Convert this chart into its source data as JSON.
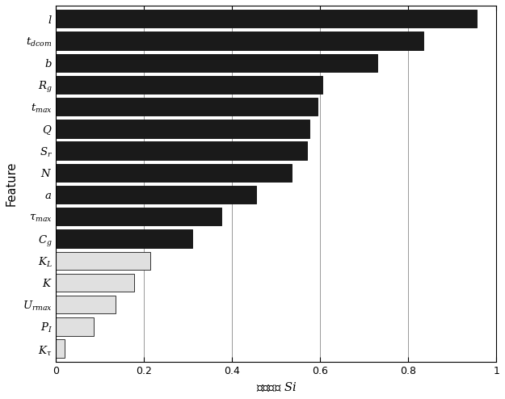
{
  "labels_display": [
    "$\\mathit{l}$",
    "$t_{dcom}$",
    "$\\mathit{b}$",
    "$R_g$",
    "$t_{max}$",
    "$\\mathit{Q}$",
    "$S_r$",
    "$\\mathit{N}$",
    "$\\mathit{a}$",
    "$\\tau_{max}$",
    "$C_g$",
    "$K_L$",
    "$\\mathit{K}$",
    "$U_{rmax}$",
    "$P_I$",
    "$K_{\\tau}$"
  ],
  "values": [
    0.955,
    0.835,
    0.73,
    0.605,
    0.595,
    0.575,
    0.57,
    0.535,
    0.455,
    0.375,
    0.31,
    0.215,
    0.178,
    0.135,
    0.085,
    0.02
  ],
  "bar_colors": [
    "#1a1a1a",
    "#1a1a1a",
    "#1a1a1a",
    "#1a1a1a",
    "#1a1a1a",
    "#1a1a1a",
    "#1a1a1a",
    "#1a1a1a",
    "#1a1a1a",
    "#1a1a1a",
    "#1a1a1a",
    "#e0e0e0",
    "#e0e0e0",
    "#e0e0e0",
    "#e0e0e0",
    "#e0e0e0"
  ],
  "edge_colors": [
    "#1a1a1a",
    "#1a1a1a",
    "#1a1a1a",
    "#1a1a1a",
    "#1a1a1a",
    "#1a1a1a",
    "#1a1a1a",
    "#1a1a1a",
    "#1a1a1a",
    "#1a1a1a",
    "#1a1a1a",
    "#333333",
    "#333333",
    "#333333",
    "#333333",
    "#333333"
  ],
  "xlabel": "综合得分 $Si$",
  "ylabel": "Feature",
  "xlim": [
    0,
    1
  ],
  "xticks": [
    0,
    0.2,
    0.4,
    0.6,
    0.8,
    1.0
  ],
  "xtick_labels": [
    "0",
    "0.2",
    "0.4",
    "0.6",
    "0.8",
    "1"
  ],
  "grid_color": "#888888",
  "background_color": "#ffffff",
  "bar_height": 0.82
}
